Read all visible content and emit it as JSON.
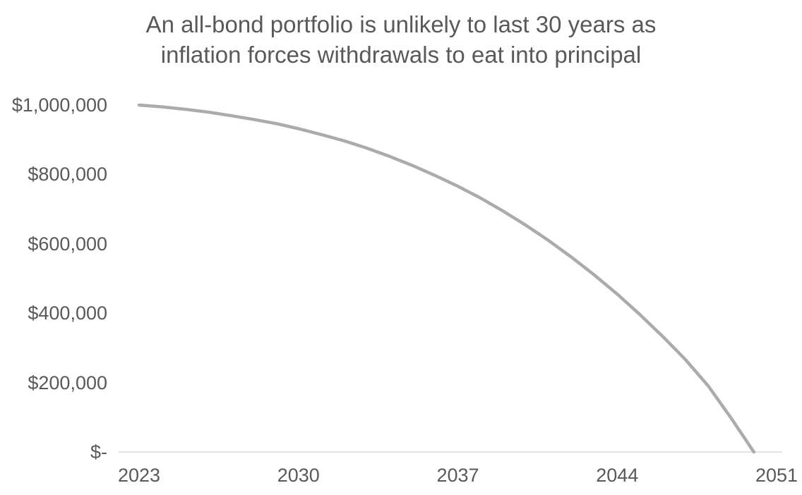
{
  "title": {
    "line1": "An all-bond portfolio is unlikely to last 30 years as",
    "line2": "inflation forces withdrawals to eat into principal"
  },
  "chart_data": {
    "type": "line",
    "title": "An all-bond portfolio is unlikely to last 30 years as inflation forces withdrawals to eat into principal",
    "xlabel": "",
    "ylabel": "",
    "x": [
      2023,
      2024,
      2025,
      2026,
      2027,
      2028,
      2029,
      2030,
      2031,
      2032,
      2033,
      2034,
      2035,
      2036,
      2037,
      2038,
      2039,
      2040,
      2041,
      2042,
      2043,
      2044,
      2045,
      2046,
      2047,
      2048,
      2049,
      2050
    ],
    "values": [
      1000000,
      995000,
      988000,
      980000,
      970000,
      959000,
      947000,
      932000,
      915000,
      897000,
      876000,
      852000,
      826000,
      797000,
      766000,
      732000,
      694000,
      653000,
      609000,
      561000,
      510000,
      455000,
      396000,
      333000,
      266000,
      190000,
      98000,
      0
    ],
    "x_ticks": {
      "labels": [
        "2023",
        "2030",
        "2037",
        "2044",
        "2051"
      ],
      "years": [
        2023,
        2030,
        2037,
        2044,
        2051
      ]
    },
    "y_ticks": {
      "labels": [
        "$1,000,000",
        "$800,000",
        "$600,000",
        "$400,000",
        "$200,000",
        "$-"
      ],
      "values": [
        1000000,
        800000,
        600000,
        400000,
        200000,
        0
      ]
    },
    "xlim": [
      2023,
      2051
    ],
    "ylim": [
      0,
      1000000
    ],
    "grid": "off",
    "legend": "none",
    "colors": {
      "line": "#ABABAB",
      "axis_line": "#D9D9D9",
      "text": "#595959",
      "background": "#FFFFFF"
    }
  }
}
